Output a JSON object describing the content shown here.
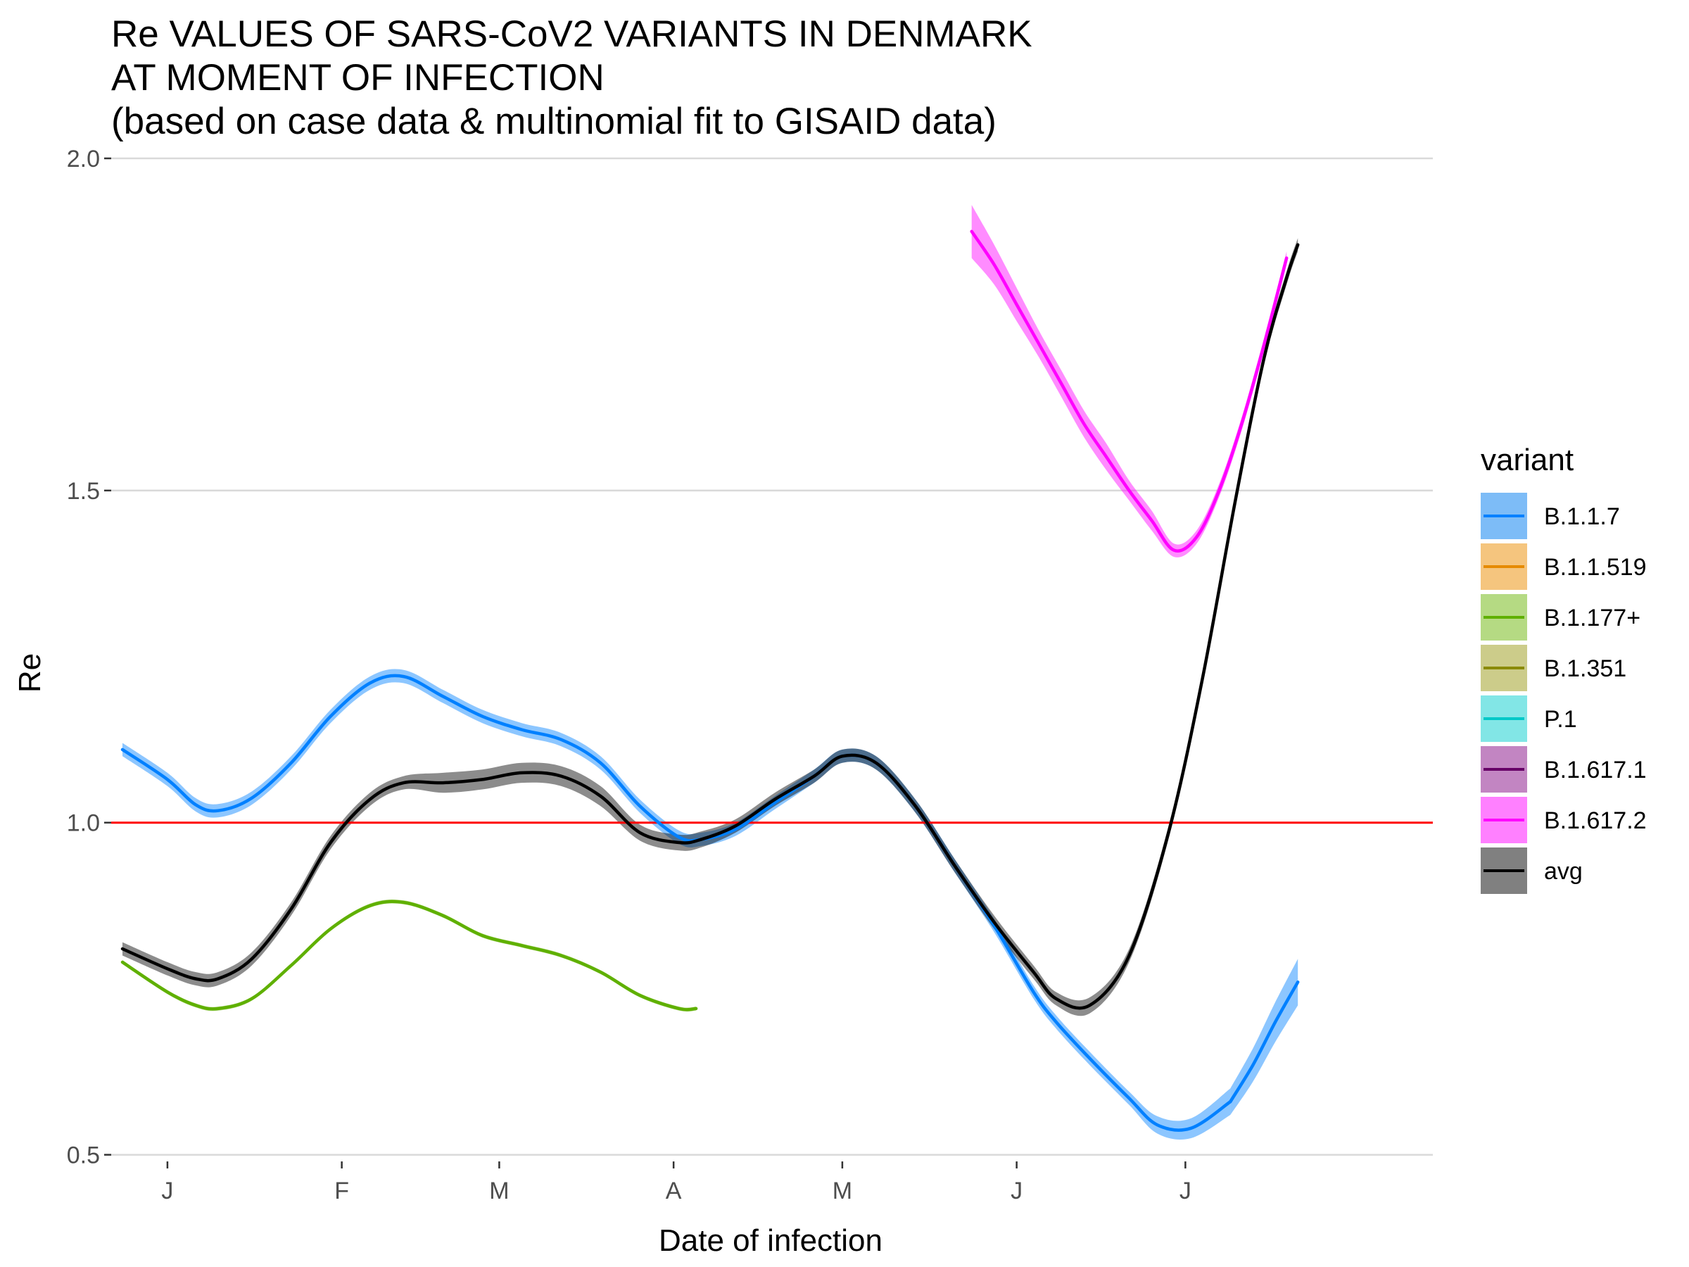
{
  "chart_data": {
    "type": "line",
    "title_lines": [
      "Re VALUES OF SARS-CoV2 VARIANTS IN DENMARK",
      "AT MOMENT OF INFECTION",
      "(based on case data & multinomial fit to GISAID data)"
    ],
    "xlabel": "Date of infection",
    "ylabel": "Re",
    "x_ticks": [
      {
        "date": "2021-01-01",
        "label": "J"
      },
      {
        "date": "2021-02-01",
        "label": "F"
      },
      {
        "date": "2021-03-01",
        "label": "M"
      },
      {
        "date": "2021-04-01",
        "label": "A"
      },
      {
        "date": "2021-05-01",
        "label": "M"
      },
      {
        "date": "2021-06-01",
        "label": "J"
      },
      {
        "date": "2021-07-01",
        "label": "J"
      }
    ],
    "xlim": [
      "2020-12-22",
      "2021-08-14"
    ],
    "ylim": [
      0.49,
      2.0
    ],
    "y_ticks": [
      {
        "value": 0.5,
        "label": "0.5"
      },
      {
        "value": 1.0,
        "label": "1.0"
      },
      {
        "value": 1.5,
        "label": "1.5"
      },
      {
        "value": 2.0,
        "label": "2.0"
      }
    ],
    "reference_line": {
      "y": 1.0,
      "color": "#ff0000"
    },
    "grid": "horizontal major",
    "legend": {
      "title": "variant",
      "position": "right",
      "entries": [
        {
          "label": "B.1.1.7",
          "color": "#0080ff",
          "fill": "#7dbcf7"
        },
        {
          "label": "B.1.1.519",
          "color": "#e68a00",
          "fill": "#f5c57e"
        },
        {
          "label": "B.1.177+",
          "color": "#5fb000",
          "fill": "#b5da83"
        },
        {
          "label": "B.1.351",
          "color": "#8a8a00",
          "fill": "#cccc8a"
        },
        {
          "label": "P.1",
          "color": "#00c8c8",
          "fill": "#82e6e6"
        },
        {
          "label": "B.1.617.1",
          "color": "#660066",
          "fill": "#c285c2"
        },
        {
          "label": "B.1.617.2",
          "color": "#ff00ff",
          "fill": "#ff80ff"
        },
        {
          "label": "avg",
          "color": "#000000",
          "fill": "#808080"
        }
      ]
    },
    "series": [
      {
        "name": "B.1.1.7",
        "color": "#0080ff",
        "ci_fill": "#0080ff",
        "x": [
          "2020-12-24",
          "2021-01-01",
          "2021-01-06",
          "2021-01-10",
          "2021-01-16",
          "2021-01-23",
          "2021-01-30",
          "2021-02-06",
          "2021-02-12",
          "2021-02-19",
          "2021-02-26",
          "2021-03-05",
          "2021-03-12",
          "2021-03-19",
          "2021-03-26",
          "2021-04-02",
          "2021-04-06",
          "2021-04-12",
          "2021-04-19",
          "2021-04-26",
          "2021-05-01",
          "2021-05-07",
          "2021-05-14",
          "2021-05-21",
          "2021-05-28",
          "2021-06-04",
          "2021-06-08",
          "2021-06-14",
          "2021-06-21",
          "2021-06-26",
          "2021-07-02",
          "2021-07-09"
        ],
        "y": [
          1.11,
          1.065,
          1.027,
          1.018,
          1.037,
          1.09,
          1.16,
          1.21,
          1.22,
          1.19,
          1.16,
          1.14,
          1.125,
          1.09,
          1.025,
          0.978,
          0.975,
          0.99,
          1.03,
          1.07,
          1.1,
          1.09,
          1.025,
          0.935,
          0.845,
          0.745,
          0.7,
          0.645,
          0.585,
          0.545,
          0.54,
          0.58
        ],
        "y_lower": [
          1.1,
          1.055,
          1.017,
          1.008,
          1.027,
          1.08,
          1.15,
          1.2,
          1.21,
          1.18,
          1.15,
          1.13,
          1.115,
          1.08,
          1.015,
          0.968,
          0.965,
          0.98,
          1.02,
          1.06,
          1.09,
          1.08,
          1.015,
          0.925,
          0.835,
          0.735,
          0.69,
          0.635,
          0.575,
          0.532,
          0.525,
          0.56
        ],
        "y_upper": [
          1.12,
          1.075,
          1.037,
          1.028,
          1.047,
          1.1,
          1.17,
          1.22,
          1.23,
          1.2,
          1.17,
          1.15,
          1.135,
          1.1,
          1.035,
          0.988,
          0.985,
          1.0,
          1.04,
          1.08,
          1.11,
          1.1,
          1.035,
          0.945,
          0.855,
          0.755,
          0.71,
          0.655,
          0.595,
          0.558,
          0.555,
          0.6
        ]
      },
      {
        "name": "B.1.1.7",
        "color": "#0080ff",
        "ci_fill": "#0080ff",
        "x": [
          "2021-07-09",
          "2021-07-13",
          "2021-07-17",
          "2021-07-21"
        ],
        "y": [
          0.58,
          0.635,
          0.7,
          0.76
        ],
        "y_lower": [
          0.56,
          0.61,
          0.67,
          0.725
        ],
        "y_upper": [
          0.6,
          0.66,
          0.73,
          0.795
        ]
      },
      {
        "name": "B.1.177+",
        "color": "#5fb000",
        "ci_fill": "#5fb000",
        "x": [
          "2020-12-24",
          "2021-01-01",
          "2021-01-06",
          "2021-01-10",
          "2021-01-16",
          "2021-01-23",
          "2021-01-30",
          "2021-02-06",
          "2021-02-12",
          "2021-02-19",
          "2021-02-26",
          "2021-03-05",
          "2021-03-12",
          "2021-03-19",
          "2021-03-26",
          "2021-04-02",
          "2021-04-05"
        ],
        "y": [
          0.79,
          0.745,
          0.725,
          0.72,
          0.735,
          0.785,
          0.84,
          0.875,
          0.88,
          0.86,
          0.83,
          0.815,
          0.8,
          0.775,
          0.74,
          0.72,
          0.72
        ],
        "y_lower": [
          0.787,
          0.742,
          0.722,
          0.717,
          0.732,
          0.782,
          0.837,
          0.872,
          0.877,
          0.857,
          0.827,
          0.812,
          0.797,
          0.772,
          0.737,
          0.717,
          0.717
        ],
        "y_upper": [
          0.793,
          0.748,
          0.728,
          0.723,
          0.738,
          0.788,
          0.843,
          0.878,
          0.883,
          0.863,
          0.833,
          0.818,
          0.803,
          0.778,
          0.743,
          0.723,
          0.723
        ]
      },
      {
        "name": "B.1.617.2",
        "color": "#ff00ff",
        "ci_fill": "#ff00ff",
        "x": [
          "2021-05-24",
          "2021-05-28",
          "2021-06-01",
          "2021-06-05",
          "2021-06-09",
          "2021-06-13",
          "2021-06-17",
          "2021-06-21",
          "2021-06-25",
          "2021-06-29",
          "2021-07-03",
          "2021-07-07",
          "2021-07-11",
          "2021-07-15",
          "2021-07-19"
        ],
        "y": [
          1.89,
          1.84,
          1.78,
          1.72,
          1.66,
          1.6,
          1.55,
          1.5,
          1.455,
          1.41,
          1.43,
          1.5,
          1.6,
          1.72,
          1.85
        ],
        "y_lower": [
          1.85,
          1.81,
          1.755,
          1.7,
          1.64,
          1.58,
          1.53,
          1.485,
          1.44,
          1.4,
          1.42,
          1.49,
          1.59,
          1.71,
          1.84
        ],
        "y_upper": [
          1.93,
          1.87,
          1.805,
          1.74,
          1.68,
          1.62,
          1.57,
          1.515,
          1.47,
          1.42,
          1.44,
          1.51,
          1.61,
          1.73,
          1.86
        ]
      },
      {
        "name": "avg",
        "color": "#000000",
        "ci_fill": "#000000",
        "x": [
          "2020-12-24",
          "2021-01-01",
          "2021-01-06",
          "2021-01-10",
          "2021-01-16",
          "2021-01-23",
          "2021-01-30",
          "2021-02-06",
          "2021-02-12",
          "2021-02-19",
          "2021-02-26",
          "2021-03-05",
          "2021-03-12",
          "2021-03-19",
          "2021-03-26",
          "2021-04-02",
          "2021-04-06",
          "2021-04-12",
          "2021-04-19",
          "2021-04-26",
          "2021-05-01",
          "2021-05-07",
          "2021-05-14",
          "2021-05-21",
          "2021-05-28",
          "2021-06-04",
          "2021-06-08",
          "2021-06-14",
          "2021-06-21",
          "2021-06-28",
          "2021-07-04",
          "2021-07-10",
          "2021-07-15",
          "2021-07-19",
          "2021-07-21"
        ],
        "y": [
          0.81,
          0.78,
          0.765,
          0.765,
          0.795,
          0.87,
          0.97,
          1.035,
          1.06,
          1.06,
          1.065,
          1.075,
          1.07,
          1.04,
          0.985,
          0.97,
          0.975,
          0.995,
          1.035,
          1.07,
          1.1,
          1.09,
          1.025,
          0.935,
          0.85,
          0.775,
          0.735,
          0.725,
          0.8,
          0.985,
          1.215,
          1.49,
          1.7,
          1.82,
          1.87
        ],
        "y_lower": [
          0.8,
          0.77,
          0.755,
          0.755,
          0.785,
          0.86,
          0.96,
          1.025,
          1.05,
          1.045,
          1.05,
          1.06,
          1.055,
          1.025,
          0.973,
          0.958,
          0.963,
          0.985,
          1.025,
          1.06,
          1.09,
          1.08,
          1.015,
          0.925,
          0.84,
          0.765,
          0.725,
          0.713,
          0.79,
          0.975,
          1.205,
          1.48,
          1.69,
          1.81,
          1.86
        ],
        "y_upper": [
          0.82,
          0.79,
          0.775,
          0.775,
          0.805,
          0.88,
          0.98,
          1.045,
          1.07,
          1.075,
          1.08,
          1.09,
          1.085,
          1.055,
          0.997,
          0.982,
          0.987,
          1.005,
          1.045,
          1.08,
          1.11,
          1.1,
          1.035,
          0.945,
          0.86,
          0.785,
          0.745,
          0.737,
          0.81,
          0.995,
          1.225,
          1.5,
          1.71,
          1.83,
          1.88
        ]
      }
    ]
  }
}
